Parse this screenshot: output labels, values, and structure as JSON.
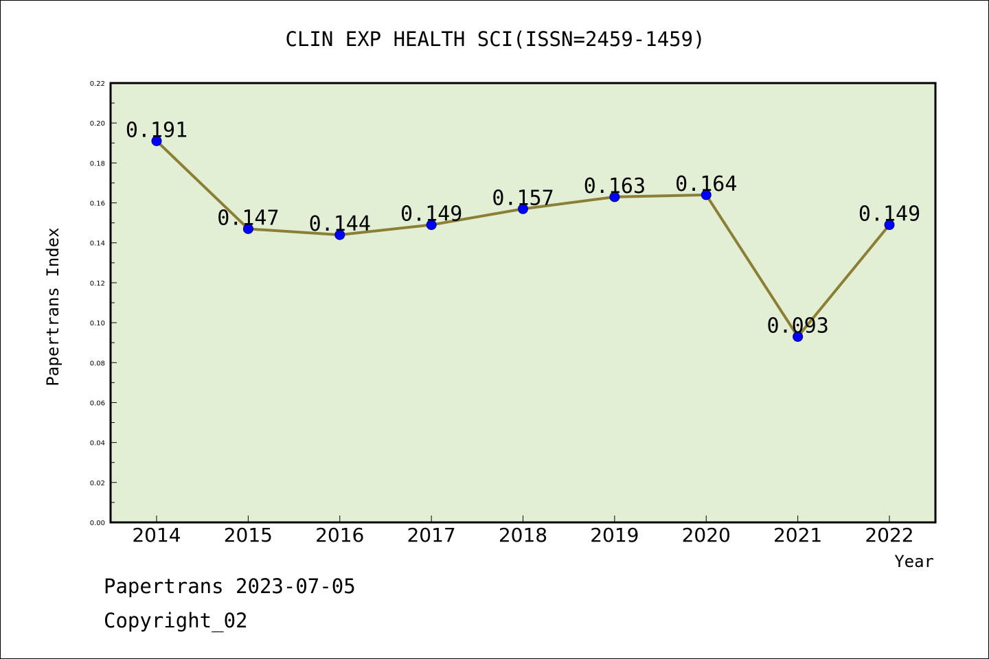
{
  "chart_data": {
    "type": "line",
    "title": "CLIN EXP HEALTH SCI(ISSN=2459-1459)",
    "xlabel": "Year",
    "ylabel": "Papertrans Index",
    "categories": [
      "2014",
      "2015",
      "2016",
      "2017",
      "2018",
      "2019",
      "2020",
      "2021",
      "2022"
    ],
    "series": [
      {
        "values": [
          0.191,
          0.147,
          0.144,
          0.149,
          0.157,
          0.163,
          0.164,
          0.093,
          0.149
        ]
      }
    ],
    "data_labels": [
      "0.191",
      "0.147",
      "0.144",
      "0.149",
      "0.157",
      "0.163",
      "0.164",
      "0.093",
      "0.149"
    ],
    "ylim": [
      0,
      0.22
    ],
    "yticks": [
      "0.00",
      "0.02",
      "0.04",
      "0.06",
      "0.08",
      "0.10",
      "0.12",
      "0.14",
      "0.16",
      "0.18",
      "0.20",
      "0.22"
    ],
    "grid": false,
    "colors": {
      "plot_background": "#e2efd5",
      "line": "#8b7f35",
      "marker_fill": "#0000ff",
      "marker_edge": "#000080"
    }
  },
  "footer": {
    "line1": "Papertrans 2023-07-05",
    "line2": "Copyright_02"
  }
}
